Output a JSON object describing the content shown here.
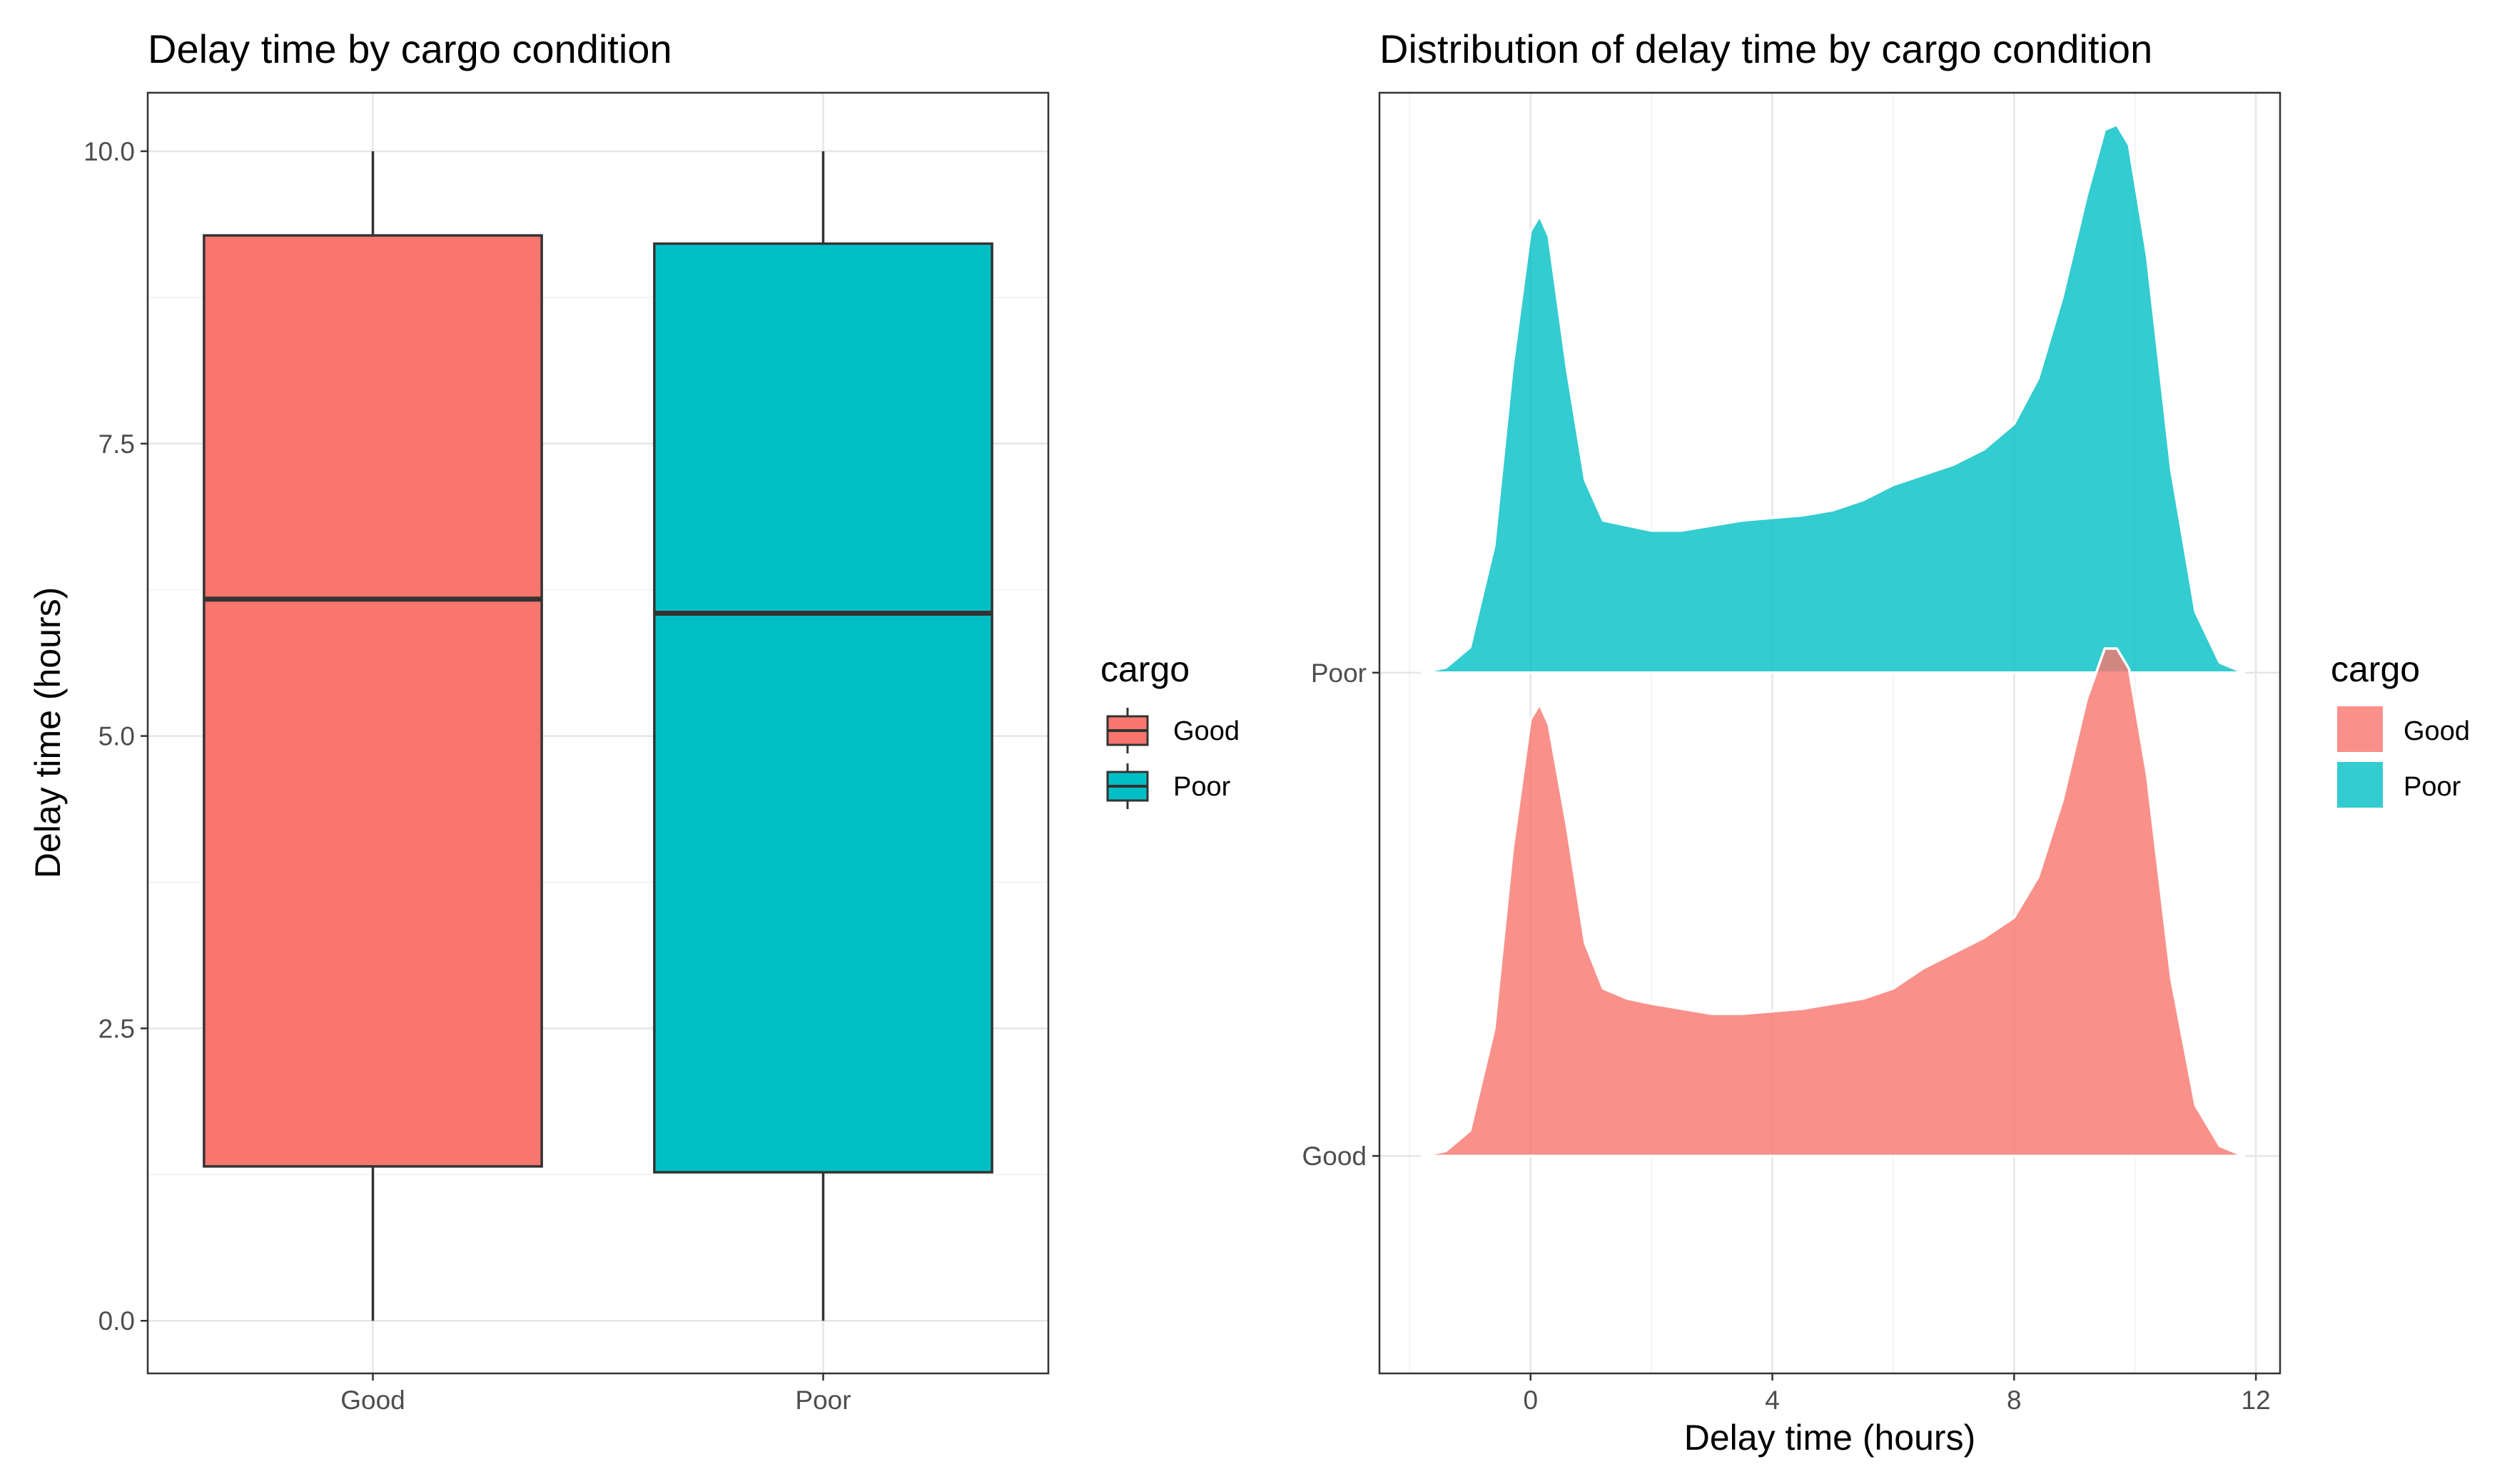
{
  "chart_data": [
    {
      "type": "boxplot",
      "title": "Delay time by cargo condition",
      "xlabel": "",
      "ylabel": "Delay time (hours)",
      "ylim": [
        -0.45,
        10.5
      ],
      "y_ticks": [
        "0.0",
        "2.5",
        "5.0",
        "7.5",
        "10.0"
      ],
      "y_tick_values": [
        0,
        2.5,
        5,
        7.5,
        10
      ],
      "categories": [
        "Good",
        "Poor"
      ],
      "boxes": [
        {
          "category": "Good",
          "min": 0.0,
          "q1": 1.32,
          "median": 6.17,
          "q3": 9.28,
          "max": 10.0,
          "color": "#F8766D"
        },
        {
          "category": "Poor",
          "min": 0.0,
          "q1": 1.27,
          "median": 6.05,
          "q3": 9.21,
          "max": 10.0,
          "color": "#00BFC4"
        }
      ],
      "grid": true,
      "legend": {
        "title": "cargo",
        "position": "right",
        "items": [
          "Good",
          "Poor"
        ]
      }
    },
    {
      "type": "density_ridges",
      "title": "Distribution of delay time by cargo condition",
      "xlabel": "Delay time (hours)",
      "ylabel": "",
      "xlim": [
        -2.5,
        12.4
      ],
      "x_ticks": [
        "0",
        "4",
        "8",
        "12"
      ],
      "x_tick_values": [
        0,
        4,
        8,
        12
      ],
      "categories": [
        "Good",
        "Poor"
      ],
      "series": [
        {
          "name": "Good",
          "color": "#F8766D",
          "x": [
            -1.8,
            -1.4,
            -1.0,
            -0.6,
            -0.3,
            0.0,
            0.15,
            0.3,
            0.6,
            0.9,
            1.2,
            1.6,
            2.0,
            2.5,
            3.0,
            3.5,
            4.0,
            4.5,
            5.0,
            5.5,
            6.0,
            6.5,
            7.0,
            7.5,
            8.0,
            8.4,
            8.8,
            9.2,
            9.5,
            9.7,
            9.9,
            10.2,
            10.6,
            11.0,
            11.4,
            11.8
          ],
          "density": [
            0.0,
            0.01,
            0.05,
            0.25,
            0.6,
            0.86,
            0.89,
            0.85,
            0.65,
            0.42,
            0.33,
            0.31,
            0.3,
            0.29,
            0.28,
            0.28,
            0.285,
            0.29,
            0.3,
            0.31,
            0.33,
            0.37,
            0.4,
            0.43,
            0.47,
            0.55,
            0.7,
            0.9,
            1.0,
            1.0,
            0.96,
            0.75,
            0.35,
            0.1,
            0.02,
            0.0
          ]
        },
        {
          "name": "Poor",
          "color": "#00BFC4",
          "x": [
            -1.8,
            -1.4,
            -1.0,
            -0.6,
            -0.3,
            0.0,
            0.15,
            0.3,
            0.6,
            0.9,
            1.2,
            1.6,
            2.0,
            2.5,
            3.0,
            3.5,
            4.0,
            4.5,
            5.0,
            5.5,
            6.0,
            6.5,
            7.0,
            7.5,
            8.0,
            8.4,
            8.8,
            9.2,
            9.5,
            9.7,
            9.9,
            10.2,
            10.6,
            11.0,
            11.4,
            11.8
          ],
          "density": [
            0.0,
            0.01,
            0.05,
            0.25,
            0.6,
            0.87,
            0.9,
            0.86,
            0.6,
            0.38,
            0.3,
            0.29,
            0.28,
            0.28,
            0.29,
            0.3,
            0.305,
            0.31,
            0.32,
            0.34,
            0.37,
            0.39,
            0.41,
            0.44,
            0.49,
            0.58,
            0.74,
            0.94,
            1.07,
            1.08,
            1.04,
            0.82,
            0.4,
            0.12,
            0.02,
            0.0
          ]
        }
      ],
      "grid": true,
      "legend": {
        "title": "cargo",
        "position": "right",
        "items": [
          "Good",
          "Poor"
        ]
      }
    }
  ]
}
